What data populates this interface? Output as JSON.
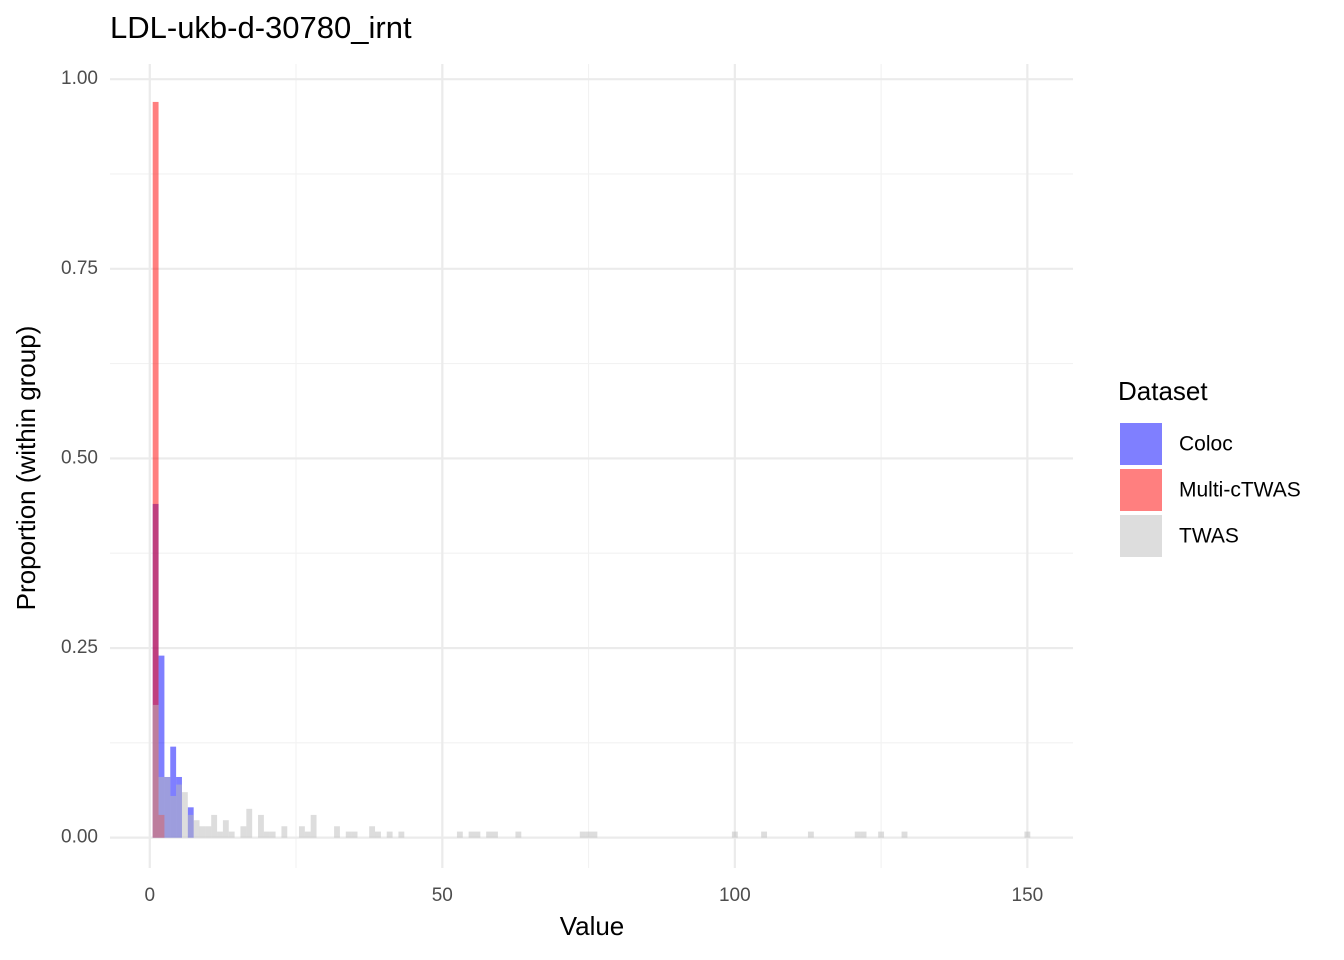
{
  "chart_data": {
    "type": "histogram",
    "title": "LDL-ukb-d-30780_irnt",
    "x_label": "Value",
    "y_label": "Proportion (within group)",
    "legend_title": "Dataset",
    "legend_position": "right",
    "grid": true,
    "bins": [
      0.5,
      1.5,
      2.5,
      3.5,
      4.5,
      5.5,
      6.5,
      7.5,
      8.5,
      9.5,
      10.5,
      11.5,
      12.5,
      13.5,
      14.5,
      15.5,
      16.5,
      17.5,
      18.5,
      19.5,
      20.5,
      21.5,
      22.5,
      23.5,
      24.5,
      25.5,
      26.5,
      27.5,
      28.5,
      29.5,
      30.5,
      31.5,
      32.5,
      33.5,
      34.5,
      35.5,
      36.5,
      37.5,
      38.5,
      39.5,
      40.5,
      41.5,
      42.5,
      43.5,
      44.5,
      45.5,
      46.5,
      47.5,
      48.5,
      49.5,
      50.5,
      51.5,
      52.5,
      53.5,
      54.5,
      55.5,
      56.5,
      57.5,
      58.5,
      59.5,
      60.5,
      61.5,
      62.5,
      63.5,
      64.5,
      65.5,
      66.5,
      67.5,
      68.5,
      69.5,
      70.5,
      71.5,
      72.5,
      73.5,
      74.5,
      75.5,
      76.5,
      77.5,
      78.5,
      79.5,
      80.5,
      81.5,
      82.5,
      83.5,
      84.5,
      85.5,
      86.5,
      87.5,
      88.5,
      89.5,
      90.5,
      91.5,
      92.5,
      93.5,
      94.5,
      95.5,
      96.5,
      97.5,
      98.5,
      99.5,
      100.5,
      101.5,
      102.5,
      103.5,
      104.5,
      105.5,
      106.5,
      107.5,
      108.5,
      109.5,
      110.5,
      111.5,
      112.5,
      113.5,
      114.5,
      115.5,
      116.5,
      117.5,
      118.5,
      119.5,
      120.5,
      121.5,
      122.5,
      123.5,
      124.5,
      125.5,
      126.5,
      127.5,
      128.5,
      129.5,
      130.5,
      131.5,
      132.5,
      133.5,
      134.5,
      135.5,
      136.5,
      137.5,
      138.5,
      139.5,
      140.5,
      141.5,
      142.5,
      143.5,
      144.5,
      145.5,
      146.5,
      147.5,
      148.5,
      149.5,
      150.5
    ],
    "series": [
      {
        "name": "Coloc",
        "color": "#0000ff",
        "values": [
          0.44,
          0.24,
          0.08,
          0.12,
          0.08,
          0,
          0.04,
          0,
          0,
          0,
          0,
          0,
          0,
          0,
          0,
          0,
          0,
          0,
          0,
          0,
          0,
          0,
          0,
          0,
          0,
          0,
          0,
          0,
          0,
          0,
          0,
          0,
          0,
          0,
          0,
          0,
          0,
          0,
          0,
          0,
          0,
          0,
          0,
          0,
          0,
          0,
          0,
          0,
          0,
          0,
          0,
          0,
          0,
          0,
          0,
          0,
          0,
          0,
          0,
          0,
          0,
          0,
          0,
          0,
          0,
          0,
          0,
          0,
          0,
          0,
          0,
          0,
          0,
          0,
          0,
          0,
          0,
          0,
          0,
          0,
          0,
          0,
          0,
          0,
          0,
          0,
          0,
          0,
          0,
          0,
          0,
          0,
          0,
          0,
          0,
          0,
          0,
          0,
          0,
          0,
          0,
          0,
          0,
          0,
          0,
          0,
          0,
          0,
          0,
          0,
          0,
          0,
          0,
          0,
          0,
          0,
          0,
          0,
          0,
          0,
          0,
          0,
          0,
          0,
          0,
          0,
          0,
          0,
          0,
          0,
          0,
          0,
          0,
          0,
          0,
          0,
          0,
          0,
          0,
          0,
          0,
          0,
          0,
          0,
          0,
          0,
          0,
          0,
          0,
          0
        ]
      },
      {
        "name": "Multi-cTWAS",
        "color": "#ff0000",
        "values": [
          0.97,
          0.03,
          0,
          0,
          0,
          0,
          0,
          0,
          0,
          0,
          0,
          0,
          0,
          0,
          0,
          0,
          0,
          0,
          0,
          0,
          0,
          0,
          0,
          0,
          0,
          0,
          0,
          0,
          0,
          0,
          0,
          0,
          0,
          0,
          0,
          0,
          0,
          0,
          0,
          0,
          0,
          0,
          0,
          0,
          0,
          0,
          0,
          0,
          0,
          0,
          0,
          0,
          0,
          0,
          0,
          0,
          0,
          0,
          0,
          0,
          0,
          0,
          0,
          0,
          0,
          0,
          0,
          0,
          0,
          0,
          0,
          0,
          0,
          0,
          0,
          0,
          0,
          0,
          0,
          0,
          0,
          0,
          0,
          0,
          0,
          0,
          0,
          0,
          0,
          0,
          0,
          0,
          0,
          0,
          0,
          0,
          0,
          0,
          0,
          0,
          0,
          0,
          0,
          0,
          0,
          0,
          0,
          0,
          0,
          0,
          0,
          0,
          0,
          0,
          0,
          0,
          0,
          0,
          0,
          0,
          0,
          0,
          0,
          0,
          0,
          0,
          0,
          0,
          0,
          0,
          0,
          0,
          0,
          0,
          0,
          0,
          0,
          0,
          0,
          0,
          0,
          0,
          0,
          0,
          0,
          0,
          0,
          0,
          0,
          0
        ]
      },
      {
        "name": "TWAS",
        "color": "#bbbbbb",
        "values": [
          0.175,
          0.08,
          0.08,
          0.055,
          0.07,
          0.06,
          0.03,
          0.023,
          0.015,
          0.015,
          0.03,
          0.008,
          0.023,
          0.008,
          0,
          0.015,
          0.038,
          0,
          0.03,
          0.008,
          0.008,
          0,
          0.015,
          0,
          0,
          0.015,
          0.008,
          0.03,
          0,
          0,
          0,
          0.015,
          0,
          0.008,
          0.008,
          0,
          0,
          0.015,
          0.008,
          0,
          0.008,
          0,
          0.008,
          0,
          0,
          0,
          0,
          0,
          0,
          0,
          0,
          0,
          0.008,
          0,
          0.008,
          0.008,
          0,
          0.008,
          0.008,
          0,
          0,
          0,
          0.008,
          0,
          0,
          0,
          0,
          0,
          0,
          0,
          0,
          0,
          0,
          0.008,
          0.008,
          0.008,
          0,
          0,
          0,
          0,
          0,
          0,
          0,
          0,
          0,
          0,
          0,
          0,
          0,
          0,
          0,
          0,
          0,
          0,
          0,
          0,
          0,
          0,
          0,
          0.008,
          0,
          0,
          0,
          0,
          0.008,
          0,
          0,
          0,
          0,
          0,
          0,
          0,
          0.008,
          0,
          0,
          0,
          0,
          0,
          0,
          0,
          0.008,
          0.008,
          0,
          0,
          0.008,
          0,
          0,
          0,
          0.008,
          0,
          0,
          0,
          0,
          0,
          0,
          0,
          0,
          0,
          0,
          0,
          0,
          0,
          0,
          0,
          0,
          0,
          0,
          0,
          0,
          0.008
        ]
      }
    ],
    "xlim": [
      -6.8,
      157.8
    ],
    "xticks": [
      0,
      50,
      100,
      150
    ],
    "ylim": [
      -0.04,
      1.02
    ],
    "yticks": [
      {
        "value": 0,
        "label": "0.00"
      },
      {
        "value": 0.25,
        "label": "0.25"
      },
      {
        "value": 0.5,
        "label": "0.50"
      },
      {
        "value": 0.75,
        "label": "0.75"
      },
      {
        "value": 1,
        "label": "1.00"
      }
    ]
  }
}
